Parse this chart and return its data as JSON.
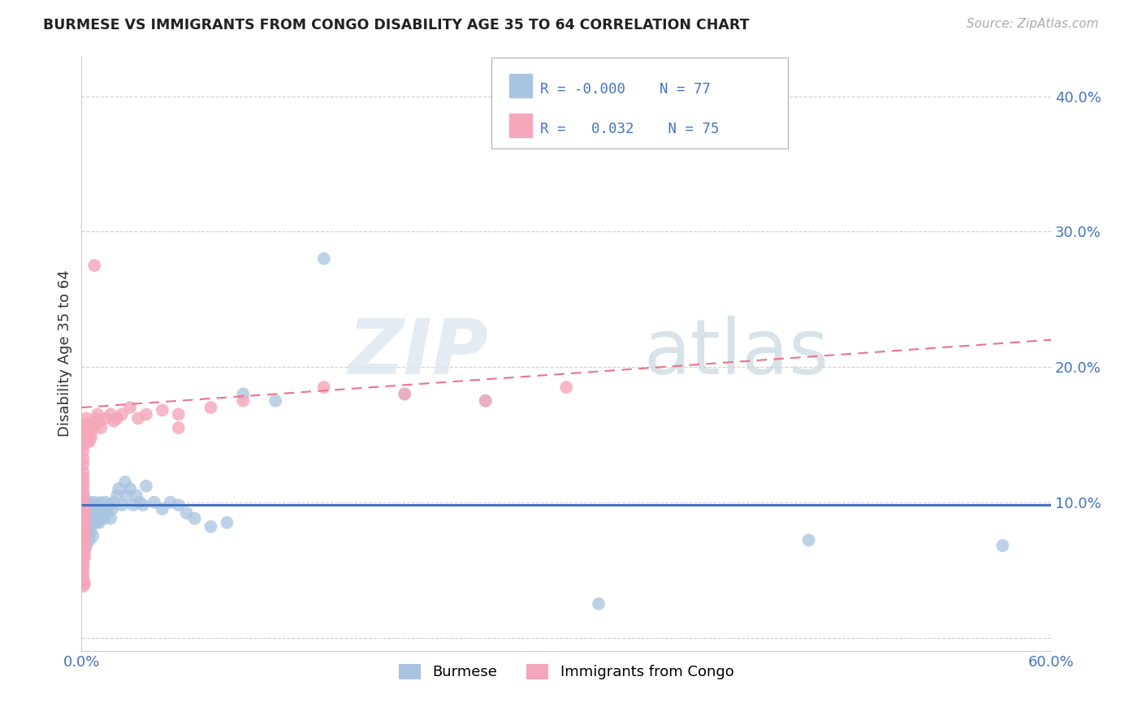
{
  "title": "BURMESE VS IMMIGRANTS FROM CONGO DISABILITY AGE 35 TO 64 CORRELATION CHART",
  "source": "Source: ZipAtlas.com",
  "ylabel": "Disability Age 35 to 64",
  "xlim": [
    0.0,
    0.6
  ],
  "ylim": [
    -0.01,
    0.43
  ],
  "xticks": [
    0.0,
    0.1,
    0.2,
    0.3,
    0.4,
    0.5,
    0.6
  ],
  "xticklabels": [
    "0.0%",
    "",
    "",
    "",
    "",
    "",
    "60.0%"
  ],
  "yticks": [
    0.0,
    0.1,
    0.2,
    0.3,
    0.4
  ],
  "yticklabels": [
    "",
    "10.0%",
    "20.0%",
    "30.0%",
    "40.0%"
  ],
  "legend_labels": [
    "Burmese",
    "Immigrants from Congo"
  ],
  "burmese_color": "#a8c4e0",
  "congo_color": "#f4a7b9",
  "burmese_line_color": "#4472c4",
  "congo_line_color": "#e8748a",
  "grid_color": "#d0d0d0",
  "R_burmese": "-0.000",
  "N_burmese": "77",
  "R_congo": "0.032",
  "N_congo": "75",
  "watermark_zip": "ZIP",
  "watermark_atlas": "atlas",
  "tick_color": "#4472c4",
  "burmese_trend_y0": 0.098,
  "burmese_trend_y1": 0.098,
  "congo_trend_y0": 0.17,
  "congo_trend_y1": 0.22,
  "burmese_x": [
    0.001,
    0.001,
    0.001,
    0.001,
    0.001,
    0.001,
    0.001,
    0.002,
    0.002,
    0.002,
    0.002,
    0.002,
    0.002,
    0.002,
    0.003,
    0.003,
    0.003,
    0.003,
    0.003,
    0.004,
    0.004,
    0.004,
    0.005,
    0.005,
    0.005,
    0.005,
    0.006,
    0.006,
    0.006,
    0.007,
    0.007,
    0.007,
    0.008,
    0.008,
    0.009,
    0.009,
    0.01,
    0.01,
    0.011,
    0.011,
    0.012,
    0.012,
    0.013,
    0.014,
    0.015,
    0.016,
    0.017,
    0.018,
    0.019,
    0.02,
    0.022,
    0.023,
    0.025,
    0.027,
    0.028,
    0.03,
    0.032,
    0.034,
    0.036,
    0.038,
    0.04,
    0.045,
    0.05,
    0.055,
    0.06,
    0.065,
    0.07,
    0.08,
    0.09,
    0.1,
    0.12,
    0.15,
    0.2,
    0.25,
    0.32,
    0.45,
    0.57
  ],
  "burmese_y": [
    0.095,
    0.1,
    0.09,
    0.085,
    0.105,
    0.08,
    0.075,
    0.092,
    0.088,
    0.082,
    0.078,
    0.095,
    0.07,
    0.065,
    0.098,
    0.092,
    0.085,
    0.075,
    0.068,
    0.095,
    0.088,
    0.08,
    0.1,
    0.09,
    0.082,
    0.072,
    0.098,
    0.088,
    0.078,
    0.095,
    0.085,
    0.075,
    0.1,
    0.09,
    0.095,
    0.085,
    0.098,
    0.088,
    0.095,
    0.085,
    0.1,
    0.09,
    0.095,
    0.088,
    0.1,
    0.092,
    0.098,
    0.088,
    0.095,
    0.1,
    0.105,
    0.11,
    0.098,
    0.115,
    0.105,
    0.11,
    0.098,
    0.105,
    0.1,
    0.098,
    0.112,
    0.1,
    0.095,
    0.1,
    0.098,
    0.092,
    0.088,
    0.082,
    0.085,
    0.18,
    0.175,
    0.28,
    0.18,
    0.175,
    0.025,
    0.072,
    0.068
  ],
  "congo_x": [
    0.001,
    0.001,
    0.001,
    0.001,
    0.001,
    0.001,
    0.001,
    0.001,
    0.001,
    0.001,
    0.001,
    0.001,
    0.001,
    0.001,
    0.001,
    0.001,
    0.001,
    0.001,
    0.001,
    0.001,
    0.001,
    0.001,
    0.001,
    0.001,
    0.001,
    0.001,
    0.001,
    0.001,
    0.001,
    0.001,
    0.001,
    0.001,
    0.002,
    0.002,
    0.002,
    0.002,
    0.002,
    0.002,
    0.002,
    0.002,
    0.002,
    0.003,
    0.003,
    0.003,
    0.004,
    0.004,
    0.004,
    0.005,
    0.005,
    0.006,
    0.006,
    0.007,
    0.008,
    0.008,
    0.009,
    0.01,
    0.011,
    0.012,
    0.015,
    0.018,
    0.02,
    0.022,
    0.025,
    0.03,
    0.035,
    0.04,
    0.05,
    0.06,
    0.08,
    0.1,
    0.15,
    0.2,
    0.25,
    0.3,
    0.06
  ],
  "congo_y": [
    0.155,
    0.148,
    0.142,
    0.138,
    0.132,
    0.128,
    0.122,
    0.118,
    0.115,
    0.112,
    0.108,
    0.105,
    0.102,
    0.098,
    0.095,
    0.092,
    0.088,
    0.085,
    0.082,
    0.078,
    0.075,
    0.072,
    0.068,
    0.065,
    0.062,
    0.058,
    0.055,
    0.052,
    0.048,
    0.045,
    0.042,
    0.038,
    0.095,
    0.09,
    0.085,
    0.08,
    0.075,
    0.07,
    0.065,
    0.06,
    0.04,
    0.162,
    0.158,
    0.152,
    0.155,
    0.148,
    0.145,
    0.15,
    0.145,
    0.155,
    0.148,
    0.158,
    0.275,
    0.155,
    0.162,
    0.165,
    0.16,
    0.155,
    0.162,
    0.165,
    0.16,
    0.162,
    0.165,
    0.17,
    0.162,
    0.165,
    0.168,
    0.165,
    0.17,
    0.175,
    0.185,
    0.18,
    0.175,
    0.185,
    0.155
  ]
}
